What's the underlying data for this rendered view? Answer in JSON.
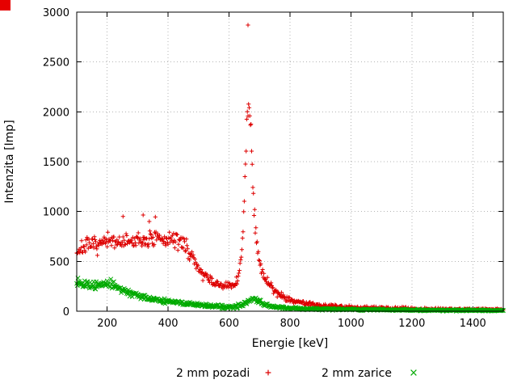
{
  "page": {
    "background": "#ffffff",
    "corner_marker_color": "#e60000"
  },
  "chart_data": {
    "type": "scatter",
    "title": "",
    "xlabel": "Energie [keV]",
    "ylabel": "Intenzita [Imp]",
    "xlim": [
      100,
      1500
    ],
    "ylim": [
      0,
      3000
    ],
    "x_ticks": [
      200,
      400,
      600,
      800,
      1000,
      1200,
      1400
    ],
    "y_ticks": [
      0,
      500,
      1000,
      1500,
      2000,
      2500,
      3000
    ],
    "grid": true,
    "legend_position": "bottom-center",
    "render_hints": {
      "sample_step_keV": 2,
      "marker_half_size": 2.6
    },
    "series": [
      {
        "name": "2 mm pozadi",
        "marker": "+",
        "color": "#dd0000",
        "seed": 7,
        "noise_sd_factor": 1.5,
        "anchors": [
          [
            100,
            600
          ],
          [
            110,
            620
          ],
          [
            130,
            650
          ],
          [
            160,
            665
          ],
          [
            200,
            690
          ],
          [
            240,
            700
          ],
          [
            280,
            695
          ],
          [
            310,
            705
          ],
          [
            340,
            720
          ],
          [
            370,
            715
          ],
          [
            400,
            720
          ],
          [
            420,
            715
          ],
          [
            440,
            700
          ],
          [
            455,
            670
          ],
          [
            470,
            590
          ],
          [
            485,
            500
          ],
          [
            500,
            430
          ],
          [
            515,
            370
          ],
          [
            530,
            320
          ],
          [
            550,
            285
          ],
          [
            570,
            260
          ],
          [
            585,
            250
          ],
          [
            600,
            248
          ],
          [
            612,
            262
          ],
          [
            622,
            290
          ],
          [
            632,
            370
          ],
          [
            640,
            540
          ],
          [
            646,
            800
          ],
          [
            651,
            1150
          ],
          [
            655,
            1550
          ],
          [
            658,
            1900
          ],
          [
            661,
            2120
          ],
          [
            664,
            2150
          ],
          [
            667,
            2050
          ],
          [
            671,
            1850
          ],
          [
            675,
            1550
          ],
          [
            680,
            1180
          ],
          [
            686,
            880
          ],
          [
            692,
            660
          ],
          [
            700,
            490
          ],
          [
            710,
            390
          ],
          [
            722,
            310
          ],
          [
            735,
            255
          ],
          [
            750,
            205
          ],
          [
            770,
            160
          ],
          [
            800,
            115
          ],
          [
            830,
            90
          ],
          [
            860,
            75
          ],
          [
            900,
            60
          ],
          [
            950,
            48
          ],
          [
            1000,
            40
          ],
          [
            1060,
            33
          ],
          [
            1120,
            28
          ],
          [
            1200,
            24
          ],
          [
            1300,
            20
          ],
          [
            1400,
            18
          ],
          [
            1500,
            15
          ]
        ],
        "outliers": [
          [
            252,
            950
          ],
          [
            318,
            965
          ],
          [
            338,
            900
          ],
          [
            358,
            945
          ],
          [
            662,
            2870
          ]
        ]
      },
      {
        "name": "2 mm zarice",
        "marker": "x",
        "color": "#00aa00",
        "seed": 13,
        "noise_sd_factor": 1.1,
        "anchors": [
          [
            100,
            310
          ],
          [
            115,
            290
          ],
          [
            130,
            270
          ],
          [
            145,
            258
          ],
          [
            160,
            252
          ],
          [
            175,
            258
          ],
          [
            190,
            272
          ],
          [
            205,
            278
          ],
          [
            215,
            268
          ],
          [
            230,
            245
          ],
          [
            250,
            215
          ],
          [
            270,
            190
          ],
          [
            290,
            168
          ],
          [
            310,
            150
          ],
          [
            330,
            135
          ],
          [
            350,
            122
          ],
          [
            375,
            108
          ],
          [
            400,
            97
          ],
          [
            430,
            85
          ],
          [
            460,
            75
          ],
          [
            490,
            66
          ],
          [
            520,
            58
          ],
          [
            550,
            50
          ],
          [
            580,
            44
          ],
          [
            600,
            42
          ],
          [
            620,
            45
          ],
          [
            640,
            58
          ],
          [
            655,
            85
          ],
          [
            668,
            112
          ],
          [
            678,
            128
          ],
          [
            686,
            125
          ],
          [
            695,
            108
          ],
          [
            705,
            88
          ],
          [
            718,
            68
          ],
          [
            732,
            54
          ],
          [
            750,
            43
          ],
          [
            775,
            35
          ],
          [
            800,
            30
          ],
          [
            850,
            25
          ],
          [
            900,
            22
          ],
          [
            950,
            19
          ],
          [
            1000,
            17
          ],
          [
            1100,
            14
          ],
          [
            1200,
            12
          ],
          [
            1300,
            10
          ],
          [
            1400,
            9
          ],
          [
            1500,
            8
          ]
        ],
        "outliers": []
      }
    ]
  }
}
